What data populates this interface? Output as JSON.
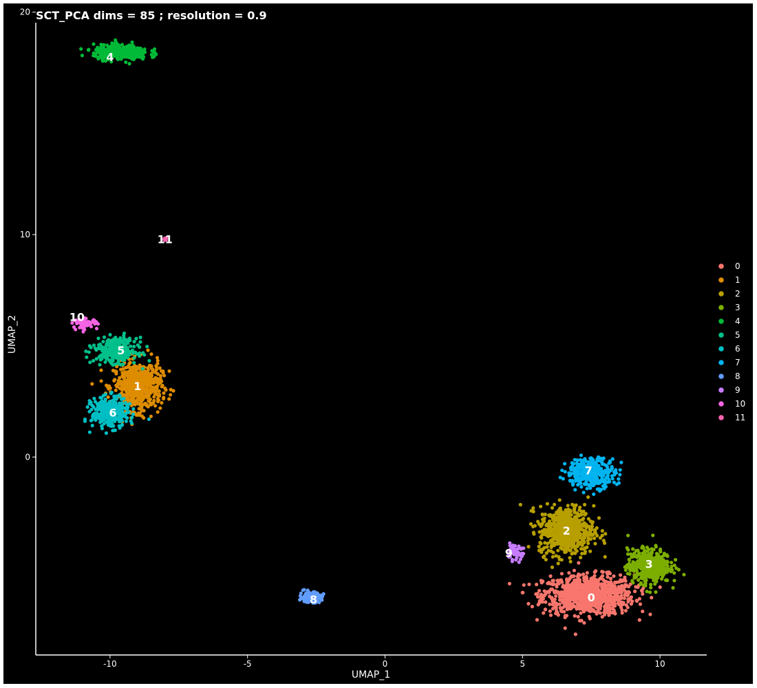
{
  "chart_data": {
    "type": "scatter",
    "title": "SCT_PCA dims =  85 ; resolution = 0.9",
    "xlabel": "UMAP_1",
    "ylabel": "UMAP_2",
    "xlim": [
      -12.7,
      11.7
    ],
    "ylim": [
      -8.9,
      20.3
    ],
    "xticks": [
      -10,
      -5,
      0,
      5,
      10
    ],
    "yticks": [
      0,
      10,
      20
    ],
    "legend_position": "right",
    "clusters": [
      {
        "name": "0",
        "color": "#F8766D",
        "center": [
          7.4,
          -6.2
        ],
        "spread": [
          1.5,
          0.8
        ],
        "n": 900
      },
      {
        "name": "1",
        "color": "#DE8C00",
        "center": [
          -9.0,
          3.2
        ],
        "spread": [
          0.8,
          1.0
        ],
        "n": 600
      },
      {
        "name": "2",
        "color": "#B79F00",
        "center": [
          6.6,
          -3.3
        ],
        "spread": [
          0.9,
          1.0
        ],
        "n": 600
      },
      {
        "name": "3",
        "color": "#7CAE00",
        "center": [
          9.6,
          -4.9
        ],
        "spread": [
          0.7,
          0.7
        ],
        "n": 450
      },
      {
        "name": "4",
        "color": "#00BA38",
        "center": [
          -9.6,
          18.2
        ],
        "spread": [
          0.9,
          0.3
        ],
        "n": 400
      },
      {
        "name": "5",
        "color": "#00C08B",
        "center": [
          -9.8,
          4.8
        ],
        "spread": [
          0.7,
          0.5
        ],
        "n": 300
      },
      {
        "name": "6",
        "color": "#00BFC4",
        "center": [
          -10.0,
          2.0
        ],
        "spread": [
          0.6,
          0.6
        ],
        "n": 350
      },
      {
        "name": "7",
        "color": "#00B4F0",
        "center": [
          7.5,
          -0.7
        ],
        "spread": [
          0.8,
          0.6
        ],
        "n": 350
      },
      {
        "name": "8",
        "color": "#619CFF",
        "center": [
          -2.7,
          -6.3
        ],
        "spread": [
          0.35,
          0.2
        ],
        "n": 200
      },
      {
        "name": "9",
        "color": "#C77CFF",
        "center": [
          4.7,
          -4.3
        ],
        "spread": [
          0.3,
          0.3
        ],
        "n": 50
      },
      {
        "name": "10",
        "color": "#F564E3",
        "center": [
          -10.9,
          6.0
        ],
        "spread": [
          0.4,
          0.2
        ],
        "n": 60
      },
      {
        "name": "11",
        "color": "#FF64B0",
        "center": [
          -8.0,
          9.8
        ],
        "spread": [
          0.05,
          0.05
        ],
        "n": 10
      }
    ],
    "label_positions": [
      {
        "name": "0",
        "x": 7.5,
        "y": -6.3
      },
      {
        "name": "1",
        "x": -9.0,
        "y": 3.2
      },
      {
        "name": "2",
        "x": 6.6,
        "y": -3.3
      },
      {
        "name": "3",
        "x": 9.6,
        "y": -4.8
      },
      {
        "name": "4",
        "x": -10.0,
        "y": 18.0
      },
      {
        "name": "5",
        "x": -9.6,
        "y": 4.8
      },
      {
        "name": "6",
        "x": -9.9,
        "y": 2.0
      },
      {
        "name": "7",
        "x": 7.4,
        "y": -0.6
      },
      {
        "name": "8",
        "x": -2.6,
        "y": -6.4
      },
      {
        "name": "9",
        "x": 4.5,
        "y": -4.3
      },
      {
        "name": "10",
        "x": -11.2,
        "y": 6.3
      },
      {
        "name": "11",
        "x": -8.0,
        "y": 9.8
      }
    ]
  }
}
